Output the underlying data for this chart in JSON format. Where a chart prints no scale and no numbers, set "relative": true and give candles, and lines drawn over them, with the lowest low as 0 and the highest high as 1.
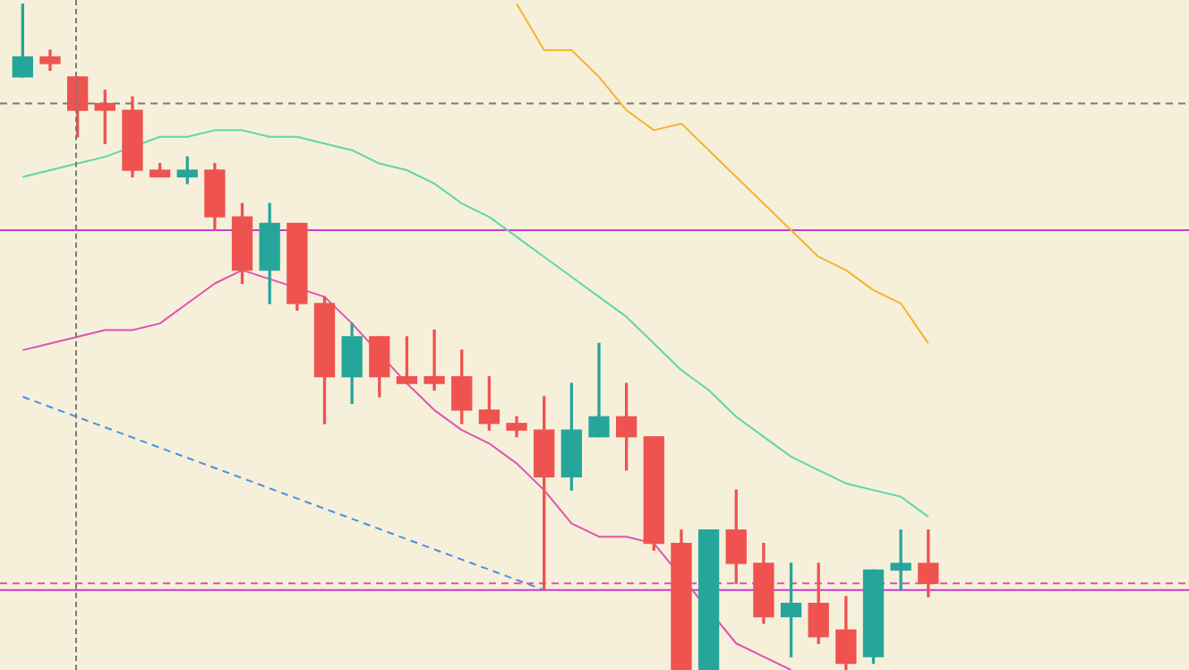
{
  "chart_data": {
    "type": "candlestick",
    "relative": true,
    "categories": [
      null,
      null,
      null,
      null,
      null,
      null,
      null,
      null,
      null,
      null,
      null,
      null,
      null,
      null,
      null,
      null,
      null,
      null,
      null,
      null,
      null,
      null,
      null,
      null,
      null,
      null,
      null,
      null,
      null,
      null,
      null,
      null,
      null,
      null,
      null,
      null,
      null,
      null,
      null,
      null,
      null,
      null,
      null
    ],
    "ohlc": [
      [
        0.89,
        1.0,
        0.89,
        0.92
      ],
      [
        0.92,
        0.93,
        0.9,
        0.91
      ],
      [
        0.89,
        0.89,
        0.8,
        0.84
      ],
      [
        0.85,
        0.87,
        0.79,
        0.84
      ],
      [
        0.84,
        0.86,
        0.74,
        0.75
      ],
      [
        0.75,
        0.76,
        0.74,
        0.74
      ],
      [
        0.74,
        0.77,
        0.73,
        0.75
      ],
      [
        0.75,
        0.76,
        0.66,
        0.68
      ],
      [
        0.68,
        0.7,
        0.58,
        0.6
      ],
      [
        0.6,
        0.7,
        0.55,
        0.67
      ],
      [
        0.67,
        0.67,
        0.54,
        0.55
      ],
      [
        0.55,
        0.56,
        0.37,
        0.44
      ],
      [
        0.44,
        0.52,
        0.4,
        0.5
      ],
      [
        0.5,
        0.5,
        0.41,
        0.44
      ],
      [
        0.44,
        0.5,
        0.43,
        0.43
      ],
      [
        0.44,
        0.51,
        0.42,
        0.43
      ],
      [
        0.44,
        0.48,
        0.37,
        0.39
      ],
      [
        0.39,
        0.44,
        0.36,
        0.37
      ],
      [
        0.37,
        0.38,
        0.35,
        0.36
      ],
      [
        0.36,
        0.41,
        0.12,
        0.29
      ],
      [
        0.29,
        0.43,
        0.27,
        0.36
      ],
      [
        0.35,
        0.49,
        0.35,
        0.38
      ],
      [
        0.38,
        0.43,
        0.3,
        0.35
      ],
      [
        0.35,
        0.35,
        0.18,
        0.19
      ],
      [
        0.19,
        0.21,
        0,
        0
      ],
      [
        0,
        0.21,
        0,
        0.21
      ],
      [
        0.21,
        0.27,
        0.13,
        0.16
      ],
      [
        0.16,
        0.19,
        0.07,
        0.08
      ],
      [
        0.08,
        0.16,
        0.02,
        0.1
      ],
      [
        0.1,
        0.16,
        0.04,
        0.05
      ],
      [
        0.06,
        0.11,
        0,
        0.01
      ],
      [
        0.02,
        0.15,
        0.01,
        0.15
      ],
      [
        0.15,
        0.21,
        0.12,
        0.16
      ],
      [
        0.16,
        0.21,
        0.11,
        0.13
      ],
      null,
      null,
      null,
      null,
      null,
      null,
      null,
      null,
      null
    ],
    "colors": [
      "#26a69a",
      "#ef5350",
      "#ef5350",
      "#ef5350",
      "#ef5350",
      "#ef5350",
      "#26a69a",
      "#ef5350",
      "#ef5350",
      "#26a69a",
      "#ef5350",
      "#ef5350",
      "#26a69a",
      "#ef5350",
      "#ef5350",
      "#ef5350",
      "#ef5350",
      "#ef5350",
      "#ef5350",
      "#ef5350",
      "#26a69a",
      "#26a69a",
      "#ef5350",
      "#ef5350",
      "#ef5350",
      "#26a69a",
      "#ef5350",
      "#ef5350",
      "#26a69a",
      "#ef5350",
      "#ef5350",
      "#26a69a",
      "#26a69a",
      "#ef5350",
      null,
      null,
      null,
      null,
      null,
      null,
      null,
      null,
      null
    ],
    "series": [
      {
        "type": "line",
        "color": "#5fd6a9",
        "line_style": "solid",
        "values": [
          0.74,
          0.75,
          0.76,
          0.77,
          null,
          0.8,
          0.8,
          0.81,
          0.81,
          0.8,
          0.8,
          0.79,
          0.78,
          0.76,
          0.75,
          0.73,
          0.7,
          0.68,
          0.65,
          0.62,
          0.59,
          0.56,
          0.53,
          0.49,
          0.45,
          0.42,
          0.38,
          0.35,
          0.32,
          0.3,
          0.28,
          0.27,
          0.26,
          0.23,
          null,
          null,
          null,
          null,
          null,
          null,
          null,
          null,
          null
        ]
      },
      {
        "type": "line",
        "color": "#e052b0",
        "line_style": "solid",
        "values": [
          0.48,
          0.49,
          0.5,
          0.51,
          0.51,
          0.52,
          0.55,
          0.58,
          0.6,
          null,
          null,
          0.56,
          0.52,
          null,
          0.43,
          0.39,
          0.36,
          0.34,
          0.31,
          0.27,
          0.22,
          0.2,
          0.2,
          0.19,
          null,
          null,
          0.04,
          0.02,
          0,
          null,
          null,
          null,
          null,
          null,
          null,
          null,
          null,
          null,
          null,
          null,
          null,
          null,
          null
        ]
      },
      {
        "type": "line",
        "color": "#f2b530",
        "line_style": "solid",
        "values": [
          null,
          null,
          null,
          null,
          null,
          null,
          null,
          null,
          null,
          null,
          null,
          null,
          null,
          null,
          null,
          null,
          null,
          null,
          1.0,
          0.93,
          0.93,
          0.89,
          0.84,
          0.81,
          0.82,
          0.78,
          0.74,
          0.7,
          0.66,
          0.62,
          0.6,
          0.57,
          0.55,
          0.49,
          null,
          null,
          null,
          null,
          null,
          null,
          null,
          null,
          null
        ]
      },
      {
        "type": "line",
        "color": "#4a90e2",
        "line_style": "dashed",
        "values": [
          0.41,
          null,
          null,
          null,
          null,
          null,
          null,
          null,
          null,
          null,
          null,
          null,
          null,
          null,
          null,
          null,
          null,
          null,
          null,
          0.12,
          null,
          null,
          null,
          null,
          null,
          null,
          null,
          null,
          null,
          null,
          null,
          null,
          null,
          null,
          null,
          null,
          null,
          null,
          null,
          null,
          null,
          null,
          null
        ]
      }
    ],
    "ref_lines": [
      {
        "axis": "y",
        "value": 0.85,
        "color": "#7a7a7a",
        "line_style": "dashed"
      },
      {
        "axis": "y",
        "value": 0.66,
        "color": "#c83ccf",
        "line_style": "solid"
      },
      {
        "axis": "y",
        "value": 0.13,
        "color": "#e052b0",
        "line_style": "dashed"
      },
      {
        "axis": "y",
        "value": 0.12,
        "color": "#c83ccf",
        "line_style": "solid"
      }
    ]
  }
}
